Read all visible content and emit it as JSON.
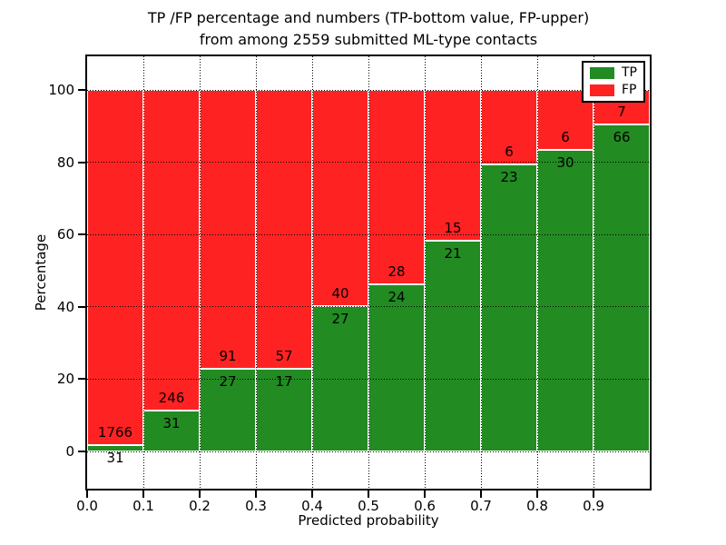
{
  "title": {
    "line1": "TP /FP percentage and numbers (TP-bottom value, FP-upper)",
    "line2": "from among 2559 submitted ML-type contacts"
  },
  "axes": {
    "xlabel": "Predicted probability",
    "ylabel": "Percentage",
    "x_ticks": [
      "0.0",
      "0.1",
      "0.2",
      "0.3",
      "0.4",
      "0.5",
      "0.6",
      "0.7",
      "0.8",
      "0.9"
    ],
    "y_ticks": [
      "0",
      "20",
      "40",
      "60",
      "80",
      "100"
    ]
  },
  "legend": {
    "items": [
      {
        "label": "TP",
        "color": "#228B22"
      },
      {
        "label": "FP",
        "color": "#FF2222"
      }
    ]
  },
  "colors": {
    "tp": "#228B22",
    "fp": "#FF2222",
    "bar_edge": "#FFFFFF",
    "grid": "#000000",
    "text": "#000000",
    "background": "#FFFFFF"
  },
  "chart_data": {
    "type": "bar",
    "stacked": true,
    "normalized_to_percent": true,
    "title": "TP /FP percentage and numbers (TP-bottom value, FP-upper) from among 2559 submitted ML-type contacts",
    "xlabel": "Predicted probability",
    "ylabel": "Percentage",
    "total_contacts": 2559,
    "bin_edges": [
      0.0,
      0.1,
      0.2,
      0.3,
      0.4,
      0.5,
      0.6,
      0.7,
      0.8,
      0.9,
      1.0
    ],
    "series": [
      {
        "name": "TP",
        "color": "#228B22",
        "counts": [
          31,
          31,
          27,
          17,
          27,
          24,
          21,
          23,
          30,
          66
        ]
      },
      {
        "name": "FP",
        "color": "#FF2222",
        "counts": [
          1766,
          246,
          91,
          57,
          40,
          28,
          15,
          6,
          6,
          7
        ]
      }
    ],
    "tp_percent": [
      1.73,
      11.19,
      22.88,
      22.97,
      40.3,
      46.15,
      58.33,
      79.31,
      83.33,
      90.41
    ],
    "ylim": [
      0,
      100
    ],
    "grid": "dotted",
    "legend_position": "upper right"
  }
}
